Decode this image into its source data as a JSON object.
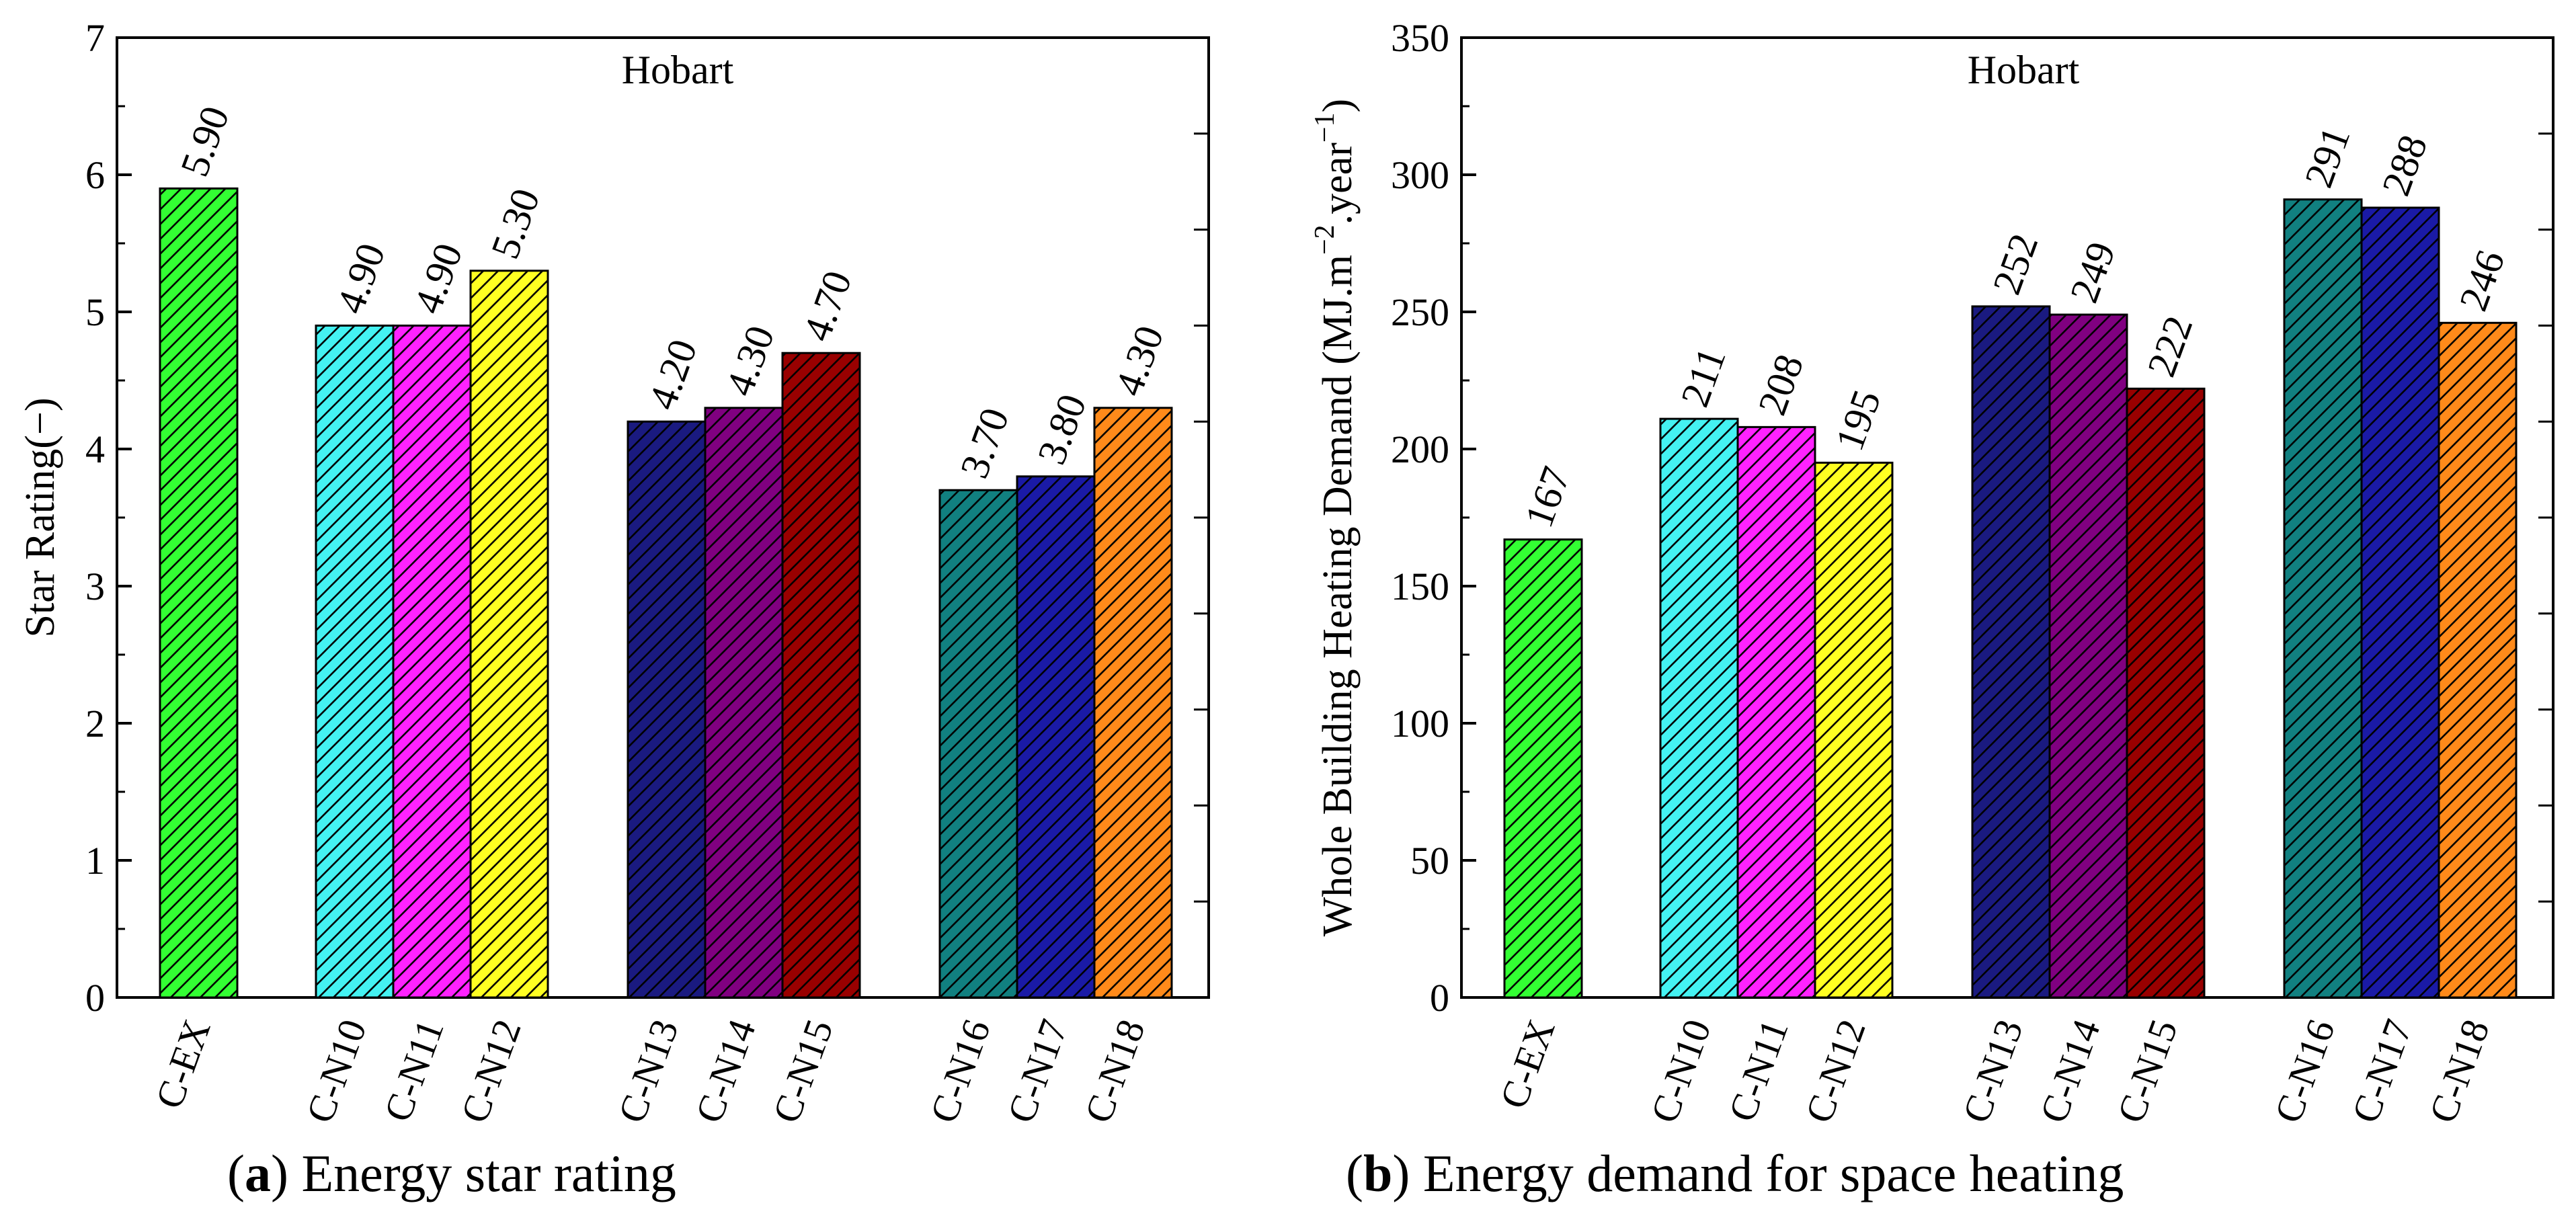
{
  "colors": {
    "C-EX": "#33ff33",
    "C-N10": "#44f2f2",
    "C-N11": "#ff22ff",
    "C-N12": "#ffff22",
    "C-N13": "#1a1a80",
    "C-N14": "#800080",
    "C-N15": "#990000",
    "C-N16": "#118080",
    "C-N17": "#1a1aa6",
    "C-N18": "#ff8a1a"
  },
  "chart_data": [
    {
      "type": "bar",
      "title": "Hobart",
      "caption_letter": "a",
      "caption_text": " Energy star rating",
      "ylabel": "Star Rating(−)",
      "xlabel": "",
      "ylim": [
        0,
        7
      ],
      "yticks": [
        "0",
        "1",
        "2",
        "3",
        "4",
        "5",
        "6",
        "7"
      ],
      "categories": [
        "C-EX",
        "C-N10",
        "C-N11",
        "C-N12",
        "C-N13",
        "C-N14",
        "C-N15",
        "C-N16",
        "C-N17",
        "C-N18"
      ],
      "values": [
        5.9,
        4.9,
        4.9,
        5.3,
        4.2,
        4.3,
        4.7,
        3.7,
        3.8,
        4.3
      ],
      "labels": [
        "5.90",
        "4.90",
        "4.90",
        "5.30",
        "4.20",
        "4.30",
        "4.70",
        "3.70",
        "3.80",
        "4.30"
      ]
    },
    {
      "type": "bar",
      "title": "Hobart",
      "caption_letter": "b",
      "caption_text": " Energy demand for space heating",
      "ylabel": "Whole Building Heating Demand (MJ.m",
      "ylabel_sup1": "−2",
      "ylabel_mid": ".year",
      "ylabel_sup2": "−1",
      "ylabel_end": ")",
      "xlabel": "",
      "ylim": [
        0,
        350
      ],
      "yticks": [
        "0",
        "50",
        "100",
        "150",
        "200",
        "250",
        "300",
        "350"
      ],
      "categories": [
        "C-EX",
        "C-N10",
        "C-N11",
        "C-N12",
        "C-N13",
        "C-N14",
        "C-N15",
        "C-N16",
        "C-N17",
        "C-N18"
      ],
      "values": [
        167,
        211,
        208,
        195,
        252,
        249,
        222,
        291,
        288,
        246
      ],
      "labels": [
        "167",
        "211",
        "208",
        "195",
        "252",
        "249",
        "222",
        "291",
        "288",
        "246"
      ]
    }
  ]
}
